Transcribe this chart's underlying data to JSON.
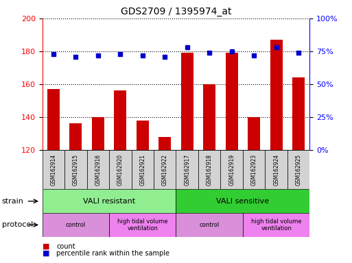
{
  "title": "GDS2709 / 1395974_at",
  "samples": [
    "GSM162914",
    "GSM162915",
    "GSM162916",
    "GSM162920",
    "GSM162921",
    "GSM162922",
    "GSM162917",
    "GSM162918",
    "GSM162919",
    "GSM162923",
    "GSM162924",
    "GSM162925"
  ],
  "counts": [
    157,
    136,
    140,
    156,
    138,
    128,
    179,
    160,
    179,
    140,
    187,
    164
  ],
  "percentiles": [
    73,
    71,
    72,
    73,
    72,
    71,
    78,
    74,
    75,
    72,
    78,
    74
  ],
  "ylim_left": [
    120,
    200
  ],
  "ylim_right": [
    0,
    100
  ],
  "yticks_left": [
    120,
    140,
    160,
    180,
    200
  ],
  "yticks_right": [
    0,
    25,
    50,
    75,
    100
  ],
  "bar_color": "#cc0000",
  "dot_color": "#0000cc",
  "strain_groups": [
    {
      "label": "VALI resistant",
      "start": 0,
      "end": 6,
      "color": "#90ee90"
    },
    {
      "label": "VALI sensitive",
      "start": 6,
      "end": 12,
      "color": "#32cd32"
    }
  ],
  "protocol_groups": [
    {
      "label": "control",
      "start": 0,
      "end": 3,
      "color": "#da8fda"
    },
    {
      "label": "high tidal volume\nventilation",
      "start": 3,
      "end": 6,
      "color": "#ee82ee"
    },
    {
      "label": "control",
      "start": 6,
      "end": 9,
      "color": "#da8fda"
    },
    {
      "label": "high tidal volume\nventilation",
      "start": 9,
      "end": 12,
      "color": "#ee82ee"
    }
  ],
  "legend_items": [
    {
      "label": "count",
      "color": "#cc0000"
    },
    {
      "label": "percentile rank within the sample",
      "color": "#0000cc"
    }
  ],
  "tick_label_bg": "#d3d3d3"
}
